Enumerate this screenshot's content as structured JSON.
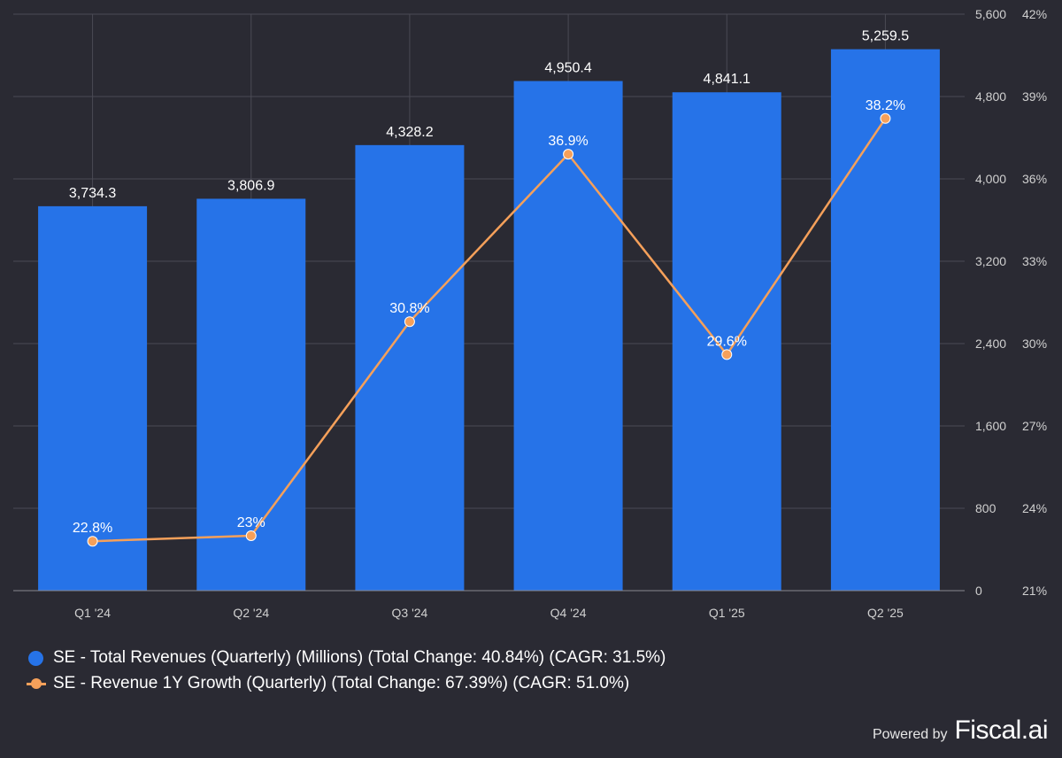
{
  "chart_data": {
    "type": "bar",
    "categories": [
      "Q1 '24",
      "Q2 '24",
      "Q3 '24",
      "Q4 '24",
      "Q1 '25",
      "Q2 '25"
    ],
    "series": [
      {
        "name": "SE - Total Revenues (Quarterly) (Millions) (Total Change: 40.84%) (CAGR: 31.5%)",
        "type": "bar",
        "axis": "left",
        "values": [
          3734.3,
          3806.9,
          4328.2,
          4950.4,
          4841.1,
          5259.5
        ],
        "labels": [
          "3,734.3",
          "3,806.9",
          "4,328.2",
          "4,950.4",
          "4,841.1",
          "5,259.5"
        ],
        "color": "#2673e8"
      },
      {
        "name": "SE - Revenue 1Y Growth (Quarterly) (Total Change: 67.39%) (CAGR: 51.0%)",
        "type": "line",
        "axis": "right",
        "values": [
          22.8,
          23.0,
          30.8,
          36.9,
          29.6,
          38.2
        ],
        "labels": [
          "22.8%",
          "23%",
          "30.8%",
          "36.9%",
          "29.6%",
          "38.2%"
        ],
        "color": "#f5a05a"
      }
    ],
    "left_axis": {
      "ylim": [
        0,
        5600
      ],
      "ticks": [
        0,
        800,
        1600,
        2400,
        3200,
        4000,
        4800,
        5600
      ],
      "tick_labels": [
        "0",
        "800",
        "1,600",
        "2,400",
        "3,200",
        "4,000",
        "4,800",
        "5,600"
      ]
    },
    "right_axis": {
      "ylim": [
        21,
        42
      ],
      "ticks": [
        21,
        24,
        27,
        30,
        33,
        36,
        39,
        42
      ],
      "tick_labels": [
        "21%",
        "24%",
        "27%",
        "30%",
        "33%",
        "36%",
        "39%",
        "42%"
      ]
    },
    "grid": true,
    "legend_position": "bottom-left"
  },
  "colors": {
    "background": "#2a2a33",
    "grid": "#4a4a54",
    "axis_text": "#d0d0d0",
    "label_text": "#ffffff"
  },
  "footer": {
    "powered_label": "Powered by",
    "brand": "Fiscal.ai"
  }
}
